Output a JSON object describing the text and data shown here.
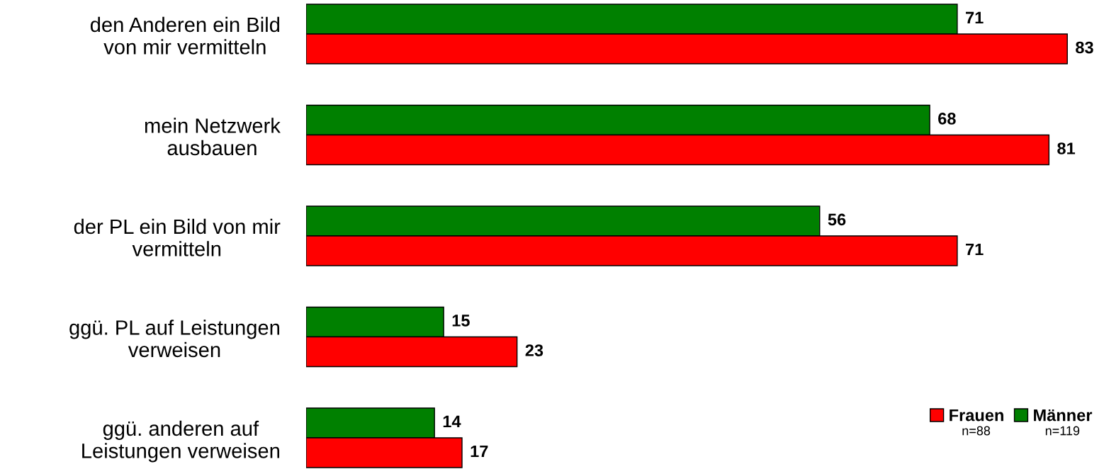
{
  "chart_data": {
    "type": "bar",
    "orientation": "horizontal",
    "categories": [
      "den Anderen ein Bild\nvon mir vermitteln",
      "mein Netzwerk\nausbauen",
      "der PL ein Bild von mir\nvermitteln",
      "ggü. PL auf Leistungen\nverweisen",
      "ggü. anderen auf\nLeistungen verweisen"
    ],
    "series": [
      {
        "name": "Männer",
        "color": "#008000",
        "values": [
          71,
          68,
          56,
          15,
          14
        ]
      },
      {
        "name": "Frauen",
        "color": "#ff0000",
        "values": [
          83,
          81,
          71,
          23,
          17
        ]
      }
    ],
    "data_labels": true,
    "legend": "bottom right",
    "tick_labels": "y",
    "grid": false,
    "annotations": [
      "n=88",
      "n=119"
    ]
  }
}
